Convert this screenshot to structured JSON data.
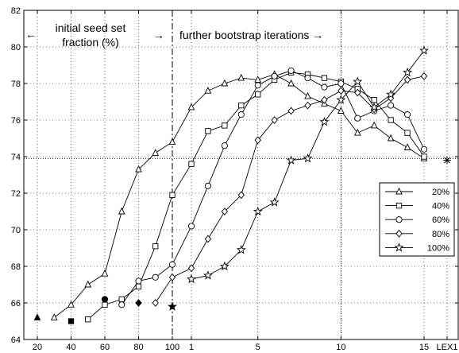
{
  "chart_data": {
    "type": "line",
    "title": "",
    "xlabel": "",
    "ylabel": "",
    "ylim": [
      64,
      82
    ],
    "y_ticks": [
      64,
      66,
      68,
      70,
      72,
      74,
      76,
      78,
      80,
      82
    ],
    "grid": "dotted",
    "legend_position": "right",
    "x_axis": {
      "left_segment": {
        "label_meaning": "initial seed set fraction (%)",
        "ticks": [
          20,
          40,
          60,
          80,
          100
        ],
        "range": [
          15,
          100
        ]
      },
      "right_segment": {
        "label_meaning": "bootstrap iteration",
        "ticks": [
          1,
          5,
          10,
          15
        ],
        "range": [
          0,
          17
        ]
      },
      "extra_ticks": [
        "LEX1"
      ]
    },
    "tick_labels_x": [
      "20",
      "40",
      "60",
      "80",
      "100",
      "1",
      "5",
      "10",
      "15",
      "LEX1"
    ],
    "annotations": {
      "left_arrow": "←",
      "left_text_line1": "initial seed set",
      "left_text_line2": "fraction (%)",
      "right_arrow_pre": "→",
      "right_text": "further bootstrap iterations →"
    },
    "separator_x": 100,
    "reference_lines": {
      "horizontal_y": 73.9,
      "vertical_x_iter": 10
    },
    "lex1_value": 73.8,
    "initial_points": [
      {
        "series": "20%",
        "x": 20,
        "y": 65.2,
        "marker": "filled-triangle"
      },
      {
        "series": "40%",
        "x": 40,
        "y": 65.0,
        "marker": "filled-square"
      },
      {
        "series": "60%",
        "x": 60,
        "y": 66.2,
        "marker": "filled-circle"
      },
      {
        "series": "80%",
        "x": 80,
        "y": 66.0,
        "marker": "filled-diamond"
      },
      {
        "series": "100%",
        "x": 100,
        "y": 65.8,
        "marker": "filled-star"
      }
    ],
    "series": [
      {
        "name": "20%",
        "marker": "triangle",
        "seed": [
          [
            30,
            65.2
          ],
          [
            40,
            65.9
          ],
          [
            50,
            67.0
          ],
          [
            60,
            67.6
          ],
          [
            70,
            71.0
          ],
          [
            80,
            73.3
          ],
          [
            90,
            74.2
          ],
          [
            100,
            74.8
          ]
        ],
        "iterations": [
          [
            1,
            76.7
          ],
          [
            2,
            77.6
          ],
          [
            3,
            78.0
          ],
          [
            4,
            78.3
          ],
          [
            5,
            78.2
          ],
          [
            6,
            78.5
          ],
          [
            7,
            78.0
          ],
          [
            8,
            77.3
          ],
          [
            9,
            76.9
          ],
          [
            10,
            76.5
          ],
          [
            11,
            75.3
          ],
          [
            12,
            75.7
          ],
          [
            13,
            75.0
          ],
          [
            14,
            74.5
          ],
          [
            15,
            73.9
          ]
        ]
      },
      {
        "name": "40%",
        "marker": "square",
        "seed": [
          [
            50,
            65.1
          ],
          [
            60,
            65.9
          ],
          [
            70,
            66.2
          ],
          [
            80,
            66.9
          ],
          [
            90,
            69.1
          ],
          [
            100,
            71.9
          ]
        ],
        "iterations": [
          [
            1,
            73.6
          ],
          [
            2,
            75.4
          ],
          [
            3,
            75.7
          ],
          [
            4,
            76.8
          ],
          [
            5,
            77.4
          ],
          [
            6,
            78.2
          ],
          [
            7,
            78.6
          ],
          [
            8,
            78.5
          ],
          [
            9,
            78.3
          ],
          [
            10,
            78.1
          ],
          [
            11,
            77.7
          ],
          [
            12,
            77.1
          ],
          [
            13,
            76.0
          ],
          [
            14,
            75.3
          ],
          [
            15,
            74.0
          ]
        ]
      },
      {
        "name": "60%",
        "marker": "circle",
        "seed": [
          [
            70,
            65.9
          ],
          [
            80,
            67.2
          ],
          [
            90,
            67.4
          ],
          [
            100,
            68.1
          ]
        ],
        "iterations": [
          [
            1,
            70.2
          ],
          [
            2,
            72.4
          ],
          [
            3,
            74.6
          ],
          [
            4,
            76.3
          ],
          [
            5,
            77.9
          ],
          [
            6,
            78.4
          ],
          [
            7,
            78.7
          ],
          [
            8,
            78.3
          ],
          [
            9,
            77.8
          ],
          [
            10,
            78.0
          ],
          [
            11,
            76.1
          ],
          [
            12,
            76.5
          ],
          [
            13,
            76.8
          ],
          [
            14,
            76.3
          ],
          [
            15,
            74.4
          ]
        ]
      },
      {
        "name": "80%",
        "marker": "diamond",
        "seed": [
          [
            90,
            66.0
          ],
          [
            100,
            67.4
          ]
        ],
        "iterations": [
          [
            1,
            67.9
          ],
          [
            2,
            69.5
          ],
          [
            3,
            71.0
          ],
          [
            4,
            71.9
          ],
          [
            5,
            74.9
          ],
          [
            6,
            76.0
          ],
          [
            7,
            76.5
          ],
          [
            8,
            76.8
          ],
          [
            9,
            77.1
          ],
          [
            10,
            77.6
          ],
          [
            11,
            77.5
          ],
          [
            12,
            76.6
          ],
          [
            13,
            77.2
          ],
          [
            14,
            78.2
          ],
          [
            15,
            78.4
          ]
        ]
      },
      {
        "name": "100%",
        "marker": "star",
        "seed": [],
        "iterations": [
          [
            1,
            67.3
          ],
          [
            2,
            67.5
          ],
          [
            3,
            68.0
          ],
          [
            4,
            68.9
          ],
          [
            5,
            71.0
          ],
          [
            6,
            71.5
          ],
          [
            7,
            73.8
          ],
          [
            8,
            73.9
          ],
          [
            9,
            75.9
          ],
          [
            10,
            77.1
          ],
          [
            11,
            78.1
          ],
          [
            12,
            76.7
          ],
          [
            13,
            77.4
          ],
          [
            14,
            78.6
          ],
          [
            15,
            79.8
          ]
        ]
      }
    ]
  }
}
